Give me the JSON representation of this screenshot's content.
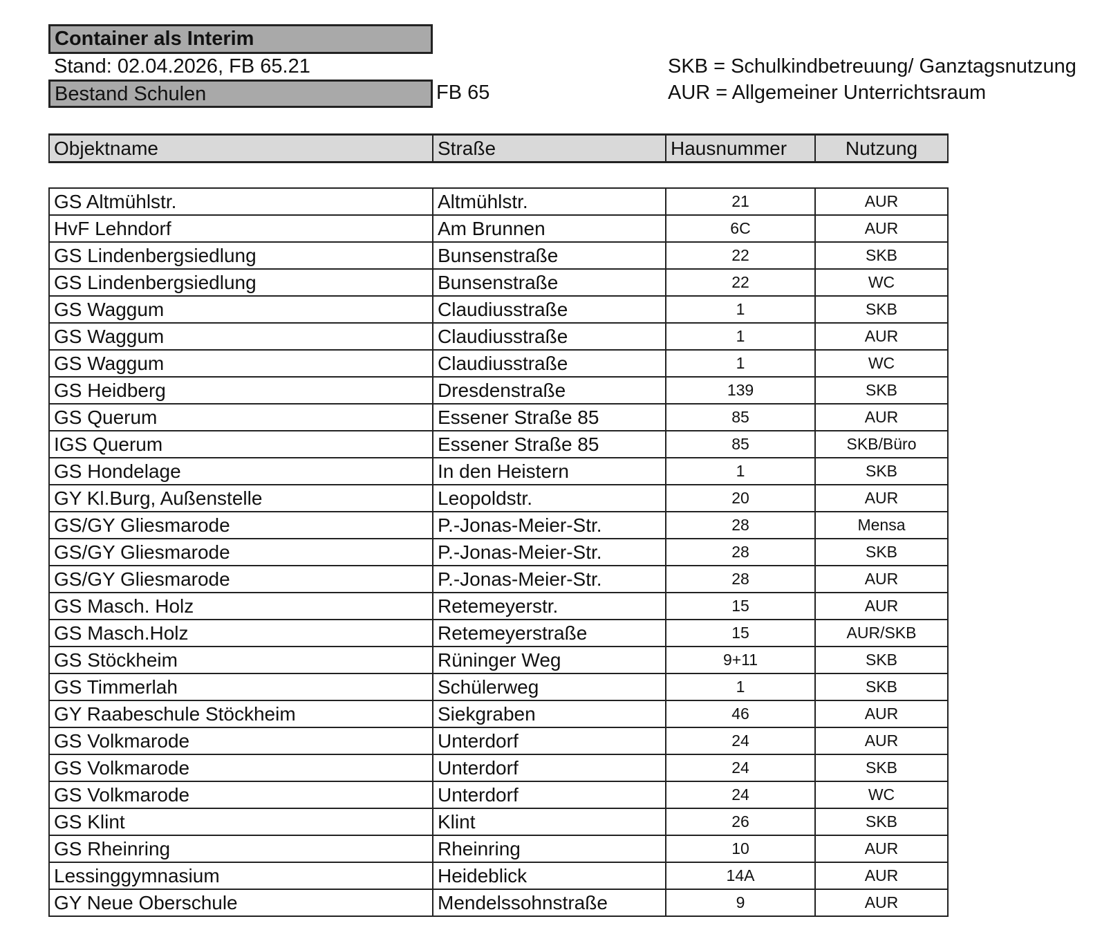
{
  "title": "Container als Interim",
  "stand": "Stand: 02.04.2026, FB 65.21",
  "section": "Bestand Schulen",
  "fb": "FB 65",
  "legend": [
    "SKB = Schulkindbetreuung/ Ganztagsnutzung",
    "AUR = Allgemeiner Unterrichtsraum"
  ],
  "columns": [
    "Objektname",
    "Straße",
    "Hausnummer",
    "Nutzung"
  ],
  "rows": [
    [
      "GS Altmühlstr.",
      "Altmühlstr.",
      "21",
      "AUR"
    ],
    [
      "HvF Lehndorf",
      "Am Brunnen",
      "6C",
      "AUR"
    ],
    [
      "GS Lindenbergsiedlung",
      "Bunsenstraße",
      "22",
      "SKB"
    ],
    [
      "GS Lindenbergsiedlung",
      "Bunsenstraße",
      "22",
      "WC"
    ],
    [
      "GS Waggum",
      "Claudiusstraße",
      "1",
      "SKB"
    ],
    [
      "GS Waggum",
      "Claudiusstraße",
      "1",
      "AUR"
    ],
    [
      "GS Waggum",
      "Claudiusstraße",
      "1",
      "WC"
    ],
    [
      "GS Heidberg",
      "Dresdenstraße",
      "139",
      "SKB"
    ],
    [
      "GS Querum",
      "Essener Straße 85",
      "85",
      "AUR"
    ],
    [
      "IGS Querum",
      "Essener Straße 85",
      "85",
      "SKB/Büro"
    ],
    [
      "GS Hondelage",
      "In den Heistern",
      "1",
      "SKB"
    ],
    [
      "GY Kl.Burg, Außenstelle",
      "Leopoldstr.",
      "20",
      "AUR"
    ],
    [
      "GS/GY Gliesmarode",
      "P.-Jonas-Meier-Str.",
      "28",
      "Mensa"
    ],
    [
      "GS/GY Gliesmarode",
      "P.-Jonas-Meier-Str.",
      "28",
      "SKB"
    ],
    [
      "GS/GY Gliesmarode",
      "P.-Jonas-Meier-Str.",
      "28",
      "AUR"
    ],
    [
      "GS Masch. Holz",
      "Retemeyerstr.",
      "15",
      "AUR"
    ],
    [
      "GS Masch.Holz",
      "Retemeyerstraße",
      "15",
      "AUR/SKB"
    ],
    [
      "GS Stöckheim",
      "Rüninger Weg",
      "9+11",
      "SKB"
    ],
    [
      "GS  Timmerlah",
      "Schülerweg",
      "1",
      "SKB"
    ],
    [
      "GY Raabeschule Stöckheim",
      "Siekgraben",
      "46",
      "AUR"
    ],
    [
      "GS Volkmarode",
      "Unterdorf",
      "24",
      "AUR"
    ],
    [
      "GS Volkmarode",
      "Unterdorf",
      "24",
      "SKB"
    ],
    [
      "GS Volkmarode",
      "Unterdorf",
      "24",
      "WC"
    ],
    [
      "GS Klint",
      "Klint",
      "26",
      "SKB"
    ],
    [
      "GS Rheinring",
      "Rheinring",
      "10",
      "AUR"
    ],
    [
      "Lessinggymnasium",
      "Heideblick",
      "14A",
      "AUR"
    ],
    [
      "GY Neue Oberschule",
      "Mendelssohnstraße",
      "9",
      "AUR"
    ]
  ]
}
